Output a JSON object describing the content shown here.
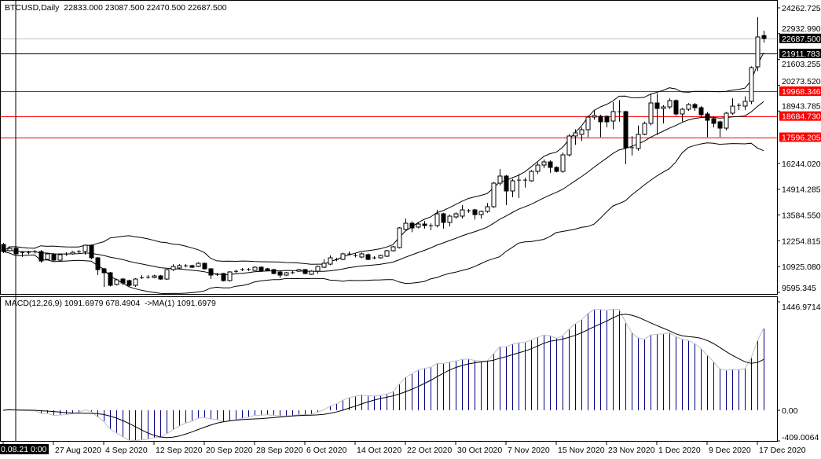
{
  "header": {
    "symbol": "BTCUSD,Daily",
    "ohlc": "22833.000 23087.500 22470.500 22687.500"
  },
  "macd_header": {
    "label": "MACD(12,26,9) 1091.6979 678.4904  ->MA(1) 1091.6979"
  },
  "colors": {
    "bull_body": "#ffffff",
    "bear_body": "#000000",
    "level_line": "#ff0000",
    "macd_histogram": "#000080",
    "macd_line": "#c0c0c0",
    "signal_line": "#000000",
    "bid_line": "#c0c0c0"
  },
  "chart_data": [
    {
      "type": "candlestick",
      "title": "BTCUSD,Daily",
      "indicators": [
        "Bollinger Bands (middle, upper, lower)"
      ],
      "ylim": [
        9595.345,
        24262.725
      ],
      "y_ticks": [
        "24262.725",
        "22932.990",
        "21603.255",
        "20273.520",
        "18943.785",
        "16244.020",
        "14914.285",
        "13584.550",
        "12254.815",
        "10925.080",
        "9595.345"
      ],
      "x_ticks": [
        "0.08.21 0:00",
        "27 Aug 2020",
        "4 Sep 2020",
        "12 Sep 2020",
        "20 Sep 2020",
        "28 Sep 2020",
        "6 Oct 2020",
        "14 Oct 2020",
        "22 Oct 2020",
        "30 Oct 2020",
        "7 Nov 2020",
        "15 Nov 2020",
        "23 Nov 2020",
        "1 Dec 2020",
        "9 Dec 2020",
        "17 Dec 2020"
      ],
      "levels": [
        {
          "value": "22687.500",
          "line": "bid",
          "tag_color": "#000000"
        },
        {
          "value": "21911.783",
          "line": "black",
          "tag_color": "#000000"
        },
        {
          "value": "19968.346",
          "line": "red",
          "tag_color": "#ff0000"
        },
        {
          "value": "18684.730",
          "line": "red",
          "tag_color": "#ff0000"
        },
        {
          "value": "17596.205",
          "line": "red",
          "tag_color": "#ff0000"
        }
      ],
      "candles_ohlc": [
        [
          12066,
          12150,
          11620,
          11702
        ],
        [
          11742,
          11940,
          11700,
          11864
        ],
        [
          11864,
          11950,
          11540,
          11580
        ],
        [
          11640,
          11700,
          11420,
          11661
        ],
        [
          11650,
          11740,
          11560,
          11670
        ],
        [
          11680,
          11780,
          11600,
          11700
        ],
        [
          11702,
          11780,
          11130,
          11215
        ],
        [
          11297,
          11620,
          11250,
          11580
        ],
        [
          11540,
          11620,
          11200,
          11256
        ],
        [
          11256,
          11600,
          11200,
          11540
        ],
        [
          11560,
          11660,
          11480,
          11580
        ],
        [
          11580,
          11720,
          11540,
          11661
        ],
        [
          11680,
          11780,
          11600,
          11702
        ],
        [
          11702,
          12060,
          11540,
          12026
        ],
        [
          12026,
          12070,
          11300,
          11378
        ],
        [
          11378,
          11420,
          10486,
          10769
        ],
        [
          10810,
          10850,
          9878,
          10607
        ],
        [
          10607,
          10650,
          9900,
          9959
        ],
        [
          9999,
          10300,
          9950,
          10243
        ],
        [
          10283,
          10330,
          9959,
          10080
        ],
        [
          10202,
          10250,
          9900,
          9959
        ],
        [
          9959,
          10330,
          9878,
          10283
        ],
        [
          10340,
          10480,
          10280,
          10364
        ],
        [
          10370,
          10480,
          10300,
          10390
        ],
        [
          10364,
          10500,
          10320,
          10445
        ],
        [
          10445,
          10490,
          10240,
          10283
        ],
        [
          10283,
          10810,
          10240,
          10769
        ],
        [
          10769,
          11050,
          10700,
          10932
        ],
        [
          10850,
          11050,
          10800,
          10972
        ],
        [
          10960,
          11060,
          10880,
          10972
        ],
        [
          10972,
          11020,
          10850,
          10891
        ],
        [
          10932,
          11150,
          10890,
          11094
        ],
        [
          11094,
          11130,
          10770,
          10810
        ],
        [
          10810,
          10850,
          10283,
          10486
        ],
        [
          10520,
          10600,
          10440,
          10526
        ],
        [
          10567,
          10600,
          10160,
          10202
        ],
        [
          10202,
          10690,
          10160,
          10648
        ],
        [
          10670,
          10770,
          10600,
          10688
        ],
        [
          10760,
          10850,
          10700,
          10769
        ],
        [
          10770,
          10850,
          10700,
          10780
        ],
        [
          10729,
          10950,
          10700,
          10891
        ],
        [
          10891,
          10930,
          10650,
          10688
        ],
        [
          10810,
          10850,
          10690,
          10729
        ],
        [
          10769,
          10810,
          10530,
          10567
        ],
        [
          10648,
          10700,
          10340,
          10486
        ],
        [
          10486,
          10650,
          10440,
          10607
        ],
        [
          10600,
          10700,
          10540,
          10620
        ],
        [
          10688,
          10810,
          10650,
          10769
        ],
        [
          10769,
          10810,
          10530,
          10567
        ],
        [
          10526,
          10730,
          10490,
          10688
        ],
        [
          10688,
          10980,
          10560,
          10932
        ],
        [
          10891,
          11300,
          10850,
          11094
        ],
        [
          11053,
          11500,
          11000,
          11378
        ],
        [
          11290,
          11380,
          11200,
          11297
        ],
        [
          11297,
          11640,
          11250,
          11580
        ],
        [
          11570,
          11700,
          11500,
          11580
        ],
        [
          11490,
          11600,
          11400,
          11499
        ],
        [
          11418,
          11650,
          11360,
          11580
        ],
        [
          11540,
          11600,
          11250,
          11297
        ],
        [
          11370,
          11460,
          11300,
          11378
        ],
        [
          11378,
          11540,
          11340,
          11499
        ],
        [
          11459,
          11790,
          11420,
          11742
        ],
        [
          11742,
          11990,
          11700,
          11945
        ],
        [
          11904,
          12960,
          11860,
          12917
        ],
        [
          12836,
          13400,
          12790,
          13161
        ],
        [
          13161,
          13250,
          12700,
          12917
        ],
        [
          12960,
          13200,
          12900,
          13120
        ],
        [
          13120,
          13280,
          12880,
          13039
        ],
        [
          13030,
          13150,
          12800,
          13039
        ],
        [
          13039,
          13850,
          12950,
          13647
        ],
        [
          13647,
          13700,
          12880,
          13201
        ],
        [
          13201,
          13600,
          13000,
          13525
        ],
        [
          13485,
          13720,
          13400,
          13647
        ],
        [
          13525,
          14100,
          13400,
          13849
        ],
        [
          13800,
          13890,
          13700,
          13809
        ],
        [
          13849,
          13900,
          13350,
          13606
        ],
        [
          13606,
          13820,
          13400,
          13769
        ],
        [
          13769,
          14200,
          13700,
          14011
        ],
        [
          14011,
          15290,
          13950,
          15227
        ],
        [
          15227,
          15950,
          15100,
          15592
        ],
        [
          15592,
          15650,
          14100,
          14822
        ],
        [
          14822,
          15450,
          14500,
          15348
        ],
        [
          15380,
          15700,
          14450,
          15389
        ],
        [
          15380,
          15500,
          15000,
          15390
        ],
        [
          15348,
          15900,
          15300,
          15835
        ],
        [
          15835,
          16300,
          15700,
          16159
        ],
        [
          16159,
          16450,
          16000,
          16321
        ],
        [
          16321,
          16400,
          15760,
          16037
        ],
        [
          16037,
          16100,
          15780,
          15835
        ],
        [
          15835,
          16800,
          15760,
          16685
        ],
        [
          16685,
          17750,
          16600,
          17658
        ],
        [
          17658,
          18000,
          17200,
          17820
        ],
        [
          17739,
          18100,
          17400,
          17982
        ],
        [
          17982,
          18700,
          17600,
          18631
        ],
        [
          18631,
          19000,
          18500,
          18712
        ],
        [
          18671,
          18750,
          17600,
          18387
        ],
        [
          18671,
          18720,
          18100,
          18387
        ],
        [
          18428,
          19400,
          18000,
          18914
        ],
        [
          18900,
          19500,
          18400,
          18914
        ],
        [
          18914,
          18960,
          16200,
          17050
        ],
        [
          17060,
          17650,
          16650,
          17050
        ],
        [
          17010,
          18200,
          16900,
          17739
        ],
        [
          17739,
          18400,
          17700,
          18306
        ],
        [
          18306,
          19800,
          18200,
          19360
        ],
        [
          19360,
          19850,
          17700,
          19076
        ],
        [
          19076,
          19250,
          18300,
          19157
        ],
        [
          19157,
          19600,
          19050,
          19482
        ],
        [
          19482,
          19550,
          18700,
          18793
        ],
        [
          18793,
          19100,
          18400,
          19036
        ],
        [
          19036,
          19350,
          18950,
          19279
        ],
        [
          19279,
          19360,
          18950,
          19117
        ],
        [
          19117,
          19200,
          18650,
          18752
        ],
        [
          18793,
          18900,
          17600,
          18468
        ],
        [
          18550,
          18650,
          18100,
          18306
        ],
        [
          18387,
          18450,
          17600,
          18063
        ],
        [
          18063,
          18900,
          17950,
          18833
        ],
        [
          18833,
          19600,
          18750,
          19198
        ],
        [
          19230,
          19350,
          19000,
          19238
        ],
        [
          19198,
          19700,
          19000,
          19441
        ],
        [
          19441,
          21250,
          19300,
          21183
        ],
        [
          21224,
          23789,
          21000,
          22764
        ],
        [
          22833,
          23087.5,
          22470.5,
          22687.5
        ]
      ]
    },
    {
      "type": "bar",
      "title": "MACD(12,26,9)",
      "series": [
        {
          "name": "MACD",
          "style": "histogram"
        },
        {
          "name": "Signal",
          "style": "line"
        },
        {
          "name": "MA(1)",
          "style": "line"
        }
      ],
      "ylim": [
        -409.0064,
        1446.9714
      ],
      "y_ticks": [
        "1446.9714",
        "0.00",
        "-409.0064"
      ],
      "last_values": {
        "macd": 1091.6979,
        "signal": 678.4904,
        "ma1": 1091.6979
      }
    }
  ]
}
